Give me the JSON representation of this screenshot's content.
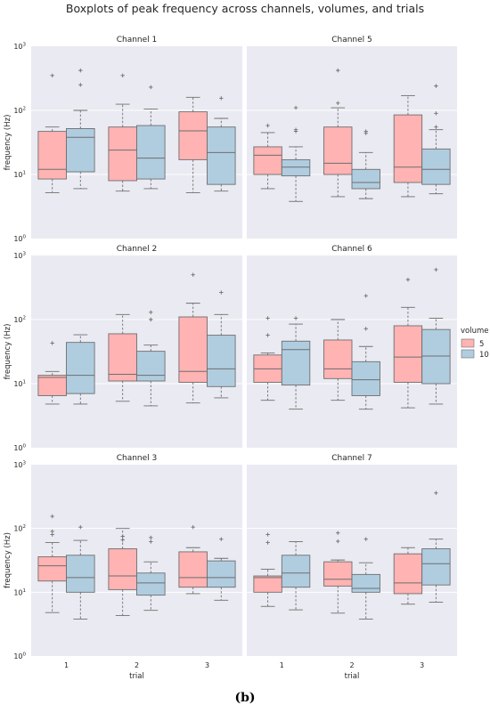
{
  "title": "Boxplots of peak frequency across channels, volumes, and trials",
  "caption": "(b)",
  "chart_data": {
    "type": "boxplot",
    "yscale": "log",
    "ylim": [
      1,
      1000
    ],
    "ylabel": "frequency (Hz)",
    "xlabel": "trial",
    "x_categories": [
      "1",
      "2",
      "3"
    ],
    "y_ticks": [
      {
        "base": "10",
        "exp": "0"
      },
      {
        "base": "10",
        "exp": "1"
      },
      {
        "base": "10",
        "exp": "2"
      },
      {
        "base": "10",
        "exp": "3"
      }
    ],
    "legend": {
      "title": "volume",
      "entries": [
        "5",
        "10"
      ],
      "colors": [
        "#ffb3b3",
        "#b0cde0"
      ],
      "placement": "right"
    },
    "colors": {
      "5": "#ffb3b3",
      "10": "#b0cde0",
      "panel_bg": "#eaeaf2",
      "line": "#6e6e6e"
    },
    "panels": [
      {
        "name": "Channel 1",
        "trials": [
          {
            "trial": "1",
            "boxes": [
              {
                "volume": "5",
                "whislo": 5.2,
                "q1": 8.5,
                "med": 12,
                "q3": 47,
                "whishi": 55,
                "fliers": [
                  350
                ]
              },
              {
                "volume": "10",
                "whislo": 6,
                "q1": 11,
                "med": 38,
                "q3": 52,
                "whishi": 100,
                "fliers": [
                  420,
                  250
                ]
              }
            ]
          },
          {
            "trial": "2",
            "boxes": [
              {
                "volume": "5",
                "whislo": 5.5,
                "q1": 8,
                "med": 24,
                "q3": 55,
                "whishi": 125,
                "fliers": [
                  350
                ]
              },
              {
                "volume": "10",
                "whislo": 6,
                "q1": 8.5,
                "med": 18,
                "q3": 58,
                "whishi": 105,
                "fliers": [
                  230
                ]
              }
            ]
          },
          {
            "trial": "3",
            "boxes": [
              {
                "volume": "5",
                "whislo": 5.2,
                "q1": 17,
                "med": 48,
                "q3": 95,
                "whishi": 160,
                "fliers": []
              },
              {
                "volume": "10",
                "whislo": 5.5,
                "q1": 7,
                "med": 22,
                "q3": 55,
                "whishi": 75,
                "fliers": [
                  155
                ]
              }
            ]
          }
        ]
      },
      {
        "name": "Channel 5",
        "trials": [
          {
            "trial": "1",
            "boxes": [
              {
                "volume": "5",
                "whislo": 6,
                "q1": 10,
                "med": 20,
                "q3": 27,
                "whishi": 45,
                "fliers": [
                  58
                ]
              },
              {
                "volume": "10",
                "whislo": 3.8,
                "q1": 9.5,
                "med": 13,
                "q3": 17,
                "whishi": 27,
                "fliers": [
                  110,
                  50,
                  47
                ]
              }
            ]
          },
          {
            "trial": "2",
            "boxes": [
              {
                "volume": "5",
                "whislo": 4.5,
                "q1": 10,
                "med": 15,
                "q3": 55,
                "whishi": 110,
                "fliers": [
                  420,
                  130
                ]
              },
              {
                "volume": "10",
                "whislo": 4.2,
                "q1": 6,
                "med": 7.5,
                "q3": 12,
                "whishi": 22,
                "fliers": [
                  47,
                  44
                ]
              }
            ]
          },
          {
            "trial": "3",
            "boxes": [
              {
                "volume": "5",
                "whislo": 4.5,
                "q1": 7.5,
                "med": 13,
                "q3": 85,
                "whishi": 170,
                "fliers": []
              },
              {
                "volume": "10",
                "whislo": 5,
                "q1": 7,
                "med": 12,
                "q3": 25,
                "whishi": 50,
                "fliers": [
                  240,
                  90,
                  55
                ]
              }
            ]
          }
        ]
      },
      {
        "name": "Channel 2",
        "trials": [
          {
            "trial": "1",
            "boxes": [
              {
                "volume": "5",
                "whislo": 4.8,
                "q1": 6.5,
                "med": 12.5,
                "q3": 13.5,
                "whishi": 15.5,
                "fliers": [
                  43
                ]
              },
              {
                "volume": "10",
                "whislo": 4.8,
                "q1": 7,
                "med": 13.5,
                "q3": 44,
                "whishi": 58,
                "fliers": []
              }
            ]
          },
          {
            "trial": "2",
            "boxes": [
              {
                "volume": "5",
                "whislo": 5.3,
                "q1": 11,
                "med": 14,
                "q3": 60,
                "whishi": 120,
                "fliers": []
              },
              {
                "volume": "10",
                "whislo": 4.5,
                "q1": 11,
                "med": 13.5,
                "q3": 32,
                "whishi": 40,
                "fliers": [
                  130,
                  100
                ]
              }
            ]
          },
          {
            "trial": "3",
            "boxes": [
              {
                "volume": "5",
                "whislo": 5,
                "q1": 10.5,
                "med": 15.5,
                "q3": 110,
                "whishi": 180,
                "fliers": [
                  500
                ]
              },
              {
                "volume": "10",
                "whislo": 6,
                "q1": 9,
                "med": 17,
                "q3": 57,
                "whishi": 120,
                "fliers": [
                  265
                ]
              }
            ]
          }
        ]
      },
      {
        "name": "Channel 6",
        "trials": [
          {
            "trial": "1",
            "boxes": [
              {
                "volume": "5",
                "whislo": 5.5,
                "q1": 10.5,
                "med": 17,
                "q3": 28,
                "whishi": 30,
                "fliers": [
                  105,
                  57
                ]
              },
              {
                "volume": "10",
                "whislo": 4,
                "q1": 9.5,
                "med": 34,
                "q3": 46,
                "whishi": 85,
                "fliers": [
                  105
                ]
              }
            ]
          },
          {
            "trial": "2",
            "boxes": [
              {
                "volume": "5",
                "whislo": 5.5,
                "q1": 12,
                "med": 17,
                "q3": 48,
                "whishi": 100,
                "fliers": []
              },
              {
                "volume": "10",
                "whislo": 4,
                "q1": 6.5,
                "med": 11.5,
                "q3": 22,
                "whishi": 38,
                "fliers": [
                  235,
                  72
                ]
              }
            ]
          },
          {
            "trial": "3",
            "boxes": [
              {
                "volume": "5",
                "whislo": 4.2,
                "q1": 10.5,
                "med": 26,
                "q3": 80,
                "whishi": 155,
                "fliers": [
                  420
                ]
              },
              {
                "volume": "10",
                "whislo": 4.8,
                "q1": 10,
                "med": 27,
                "q3": 70,
                "whishi": 105,
                "fliers": [
                  600
                ]
              }
            ]
          }
        ]
      },
      {
        "name": "Channel 3",
        "trials": [
          {
            "trial": "1",
            "boxes": [
              {
                "volume": "5",
                "whislo": 4.8,
                "q1": 15,
                "med": 26,
                "q3": 36,
                "whishi": 60,
                "fliers": [
                  155,
                  90,
                  80
                ]
              },
              {
                "volume": "10",
                "whislo": 3.8,
                "q1": 10,
                "med": 17,
                "q3": 38,
                "whishi": 65,
                "fliers": [
                  105
                ]
              }
            ]
          },
          {
            "trial": "2",
            "boxes": [
              {
                "volume": "5",
                "whislo": 4.3,
                "q1": 11,
                "med": 18,
                "q3": 48,
                "whishi": 100,
                "fliers": [
                  75,
                  66
                ]
              },
              {
                "volume": "10",
                "whislo": 5.2,
                "q1": 9,
                "med": 14,
                "q3": 20,
                "whishi": 30,
                "fliers": [
                  72,
                  62
                ]
              }
            ]
          },
          {
            "trial": "3",
            "boxes": [
              {
                "volume": "5",
                "whislo": 9.5,
                "q1": 12,
                "med": 17,
                "q3": 43,
                "whishi": 50,
                "fliers": [
                  105
                ]
              },
              {
                "volume": "10",
                "whislo": 7.5,
                "q1": 12,
                "med": 17,
                "q3": 31,
                "whishi": 34,
                "fliers": [
                  68
                ]
              }
            ]
          }
        ]
      },
      {
        "name": "Channel 7",
        "trials": [
          {
            "trial": "1",
            "boxes": [
              {
                "volume": "5",
                "whislo": 6,
                "q1": 10,
                "med": 17,
                "q3": 18,
                "whishi": 23,
                "fliers": [
                  80,
                  60
                ]
              },
              {
                "volume": "10",
                "whislo": 5.3,
                "q1": 12,
                "med": 20,
                "q3": 38,
                "whishi": 62,
                "fliers": []
              }
            ]
          },
          {
            "trial": "2",
            "boxes": [
              {
                "volume": "5",
                "whislo": 4.7,
                "q1": 12.5,
                "med": 16,
                "q3": 30,
                "whishi": 32,
                "fliers": [
                  85,
                  63
                ]
              },
              {
                "volume": "10",
                "whislo": 3.8,
                "q1": 10,
                "med": 11.5,
                "q3": 19,
                "whishi": 29,
                "fliers": [
                  68
                ]
              }
            ]
          },
          {
            "trial": "3",
            "boxes": [
              {
                "volume": "5",
                "whislo": 6.5,
                "q1": 9.5,
                "med": 14,
                "q3": 40,
                "whishi": 50,
                "fliers": []
              },
              {
                "volume": "10",
                "whislo": 7,
                "q1": 13,
                "med": 28,
                "q3": 48,
                "whishi": 68,
                "fliers": [
                  360
                ]
              }
            ]
          }
        ]
      }
    ]
  }
}
